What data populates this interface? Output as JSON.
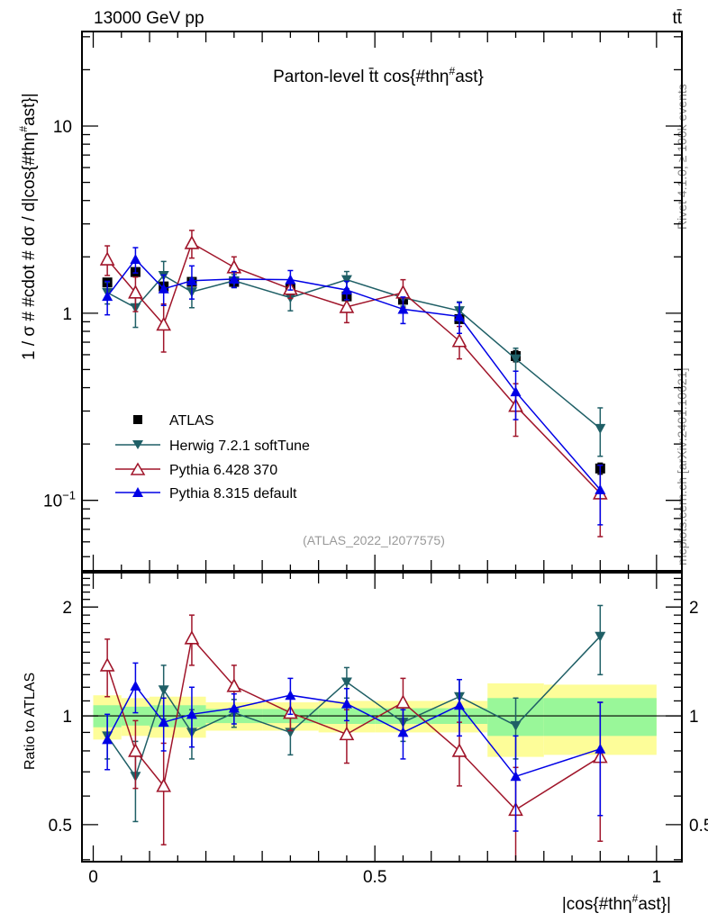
{
  "header": {
    "left_label": "13000 GeV pp",
    "right_label": "tt̄"
  },
  "side_labels": {
    "rivet": "Rivet 4.1.0, ≥ 100k events",
    "mcplots": "mcplots.cern.ch [arXiv:2401.10621]"
  },
  "colors": {
    "atlas": "#000000",
    "herwig": "#1f5f66",
    "pythia6": "#a0152a",
    "pythia8": "#0000e6",
    "band_inner": "#99f799",
    "band_outer": "#fdfd99"
  },
  "chart_data": [
    {
      "type": "line",
      "panel": "main",
      "title": "Parton-level t̄t cos{#thη#ast}",
      "title_parts": {
        "prefix": "Parton-level ",
        "tt": "t̄t",
        "suffix": " cos{#thη",
        "sup": "#",
        "end": "ast}"
      },
      "xlabel": "",
      "ylabel": "1 / σ # #cdot # dσ / d|cos{#thη#ast}|",
      "ylabel_parts": {
        "main": "1 / σ # #cdot # dσ / d|cos{#thη",
        "sup": "#",
        "end": "ast}|"
      },
      "yscale": "log",
      "xlim": [
        -0.02,
        1.045
      ],
      "ylim": [
        0.042,
        32
      ],
      "yticks": [
        {
          "v": 10,
          "label": "10"
        },
        {
          "v": 1,
          "label": "1"
        },
        {
          "v": 0.1,
          "label": "10",
          "exp": "−1"
        }
      ],
      "grid": false,
      "legend_position": "lower-left",
      "watermark": "(ATLAS_2022_I2077575)",
      "bin_edges": [
        0,
        0.05,
        0.1,
        0.15,
        0.2,
        0.3,
        0.4,
        0.5,
        0.6,
        0.7,
        0.8,
        1.0
      ],
      "x": [
        0.025,
        0.075,
        0.125,
        0.175,
        0.25,
        0.35,
        0.45,
        0.55,
        0.65,
        0.75,
        0.9
      ],
      "series": [
        {
          "name": "ATLAS",
          "key": "atlas",
          "marker": "square",
          "values": [
            1.46,
            1.66,
            1.39,
            1.47,
            1.47,
            1.35,
            1.23,
            1.18,
            0.93,
            0.59,
            0.148
          ],
          "err_lo": [
            0.05,
            0.06,
            0.05,
            0.05,
            0.04,
            0.04,
            0.04,
            0.04,
            0.04,
            0.04,
            0.01
          ],
          "err_hi": [
            0.05,
            0.06,
            0.05,
            0.05,
            0.04,
            0.04,
            0.04,
            0.04,
            0.04,
            0.04,
            0.01
          ]
        },
        {
          "name": "Herwig 7.2.1 softTune",
          "key": "herwig",
          "marker": "triangle-down",
          "values": [
            1.29,
            1.07,
            1.59,
            1.3,
            1.49,
            1.21,
            1.51,
            1.21,
            1.03,
            0.57,
            0.242
          ],
          "err_lo": [
            0.17,
            0.23,
            0.3,
            0.23,
            0.12,
            0.18,
            0.16,
            0.12,
            0.12,
            0.08,
            0.07
          ],
          "err_hi": [
            0.17,
            0.23,
            0.3,
            0.23,
            0.12,
            0.18,
            0.16,
            0.12,
            0.12,
            0.08,
            0.07
          ]
        },
        {
          "name": "Pythia 6.428 370",
          "key": "pythia6",
          "marker": "triangle-up-open",
          "values": [
            1.94,
            1.29,
            0.87,
            2.37,
            1.76,
            1.35,
            1.08,
            1.29,
            0.71,
            0.32,
            0.109
          ],
          "err_lo": [
            0.35,
            0.27,
            0.25,
            0.4,
            0.24,
            0.15,
            0.19,
            0.22,
            0.14,
            0.1,
            0.045
          ],
          "err_hi": [
            0.35,
            0.27,
            0.25,
            0.4,
            0.24,
            0.15,
            0.19,
            0.22,
            0.14,
            0.1,
            0.045
          ]
        },
        {
          "name": "Pythia 8.315 default",
          "key": "pythia8",
          "marker": "triangle-up",
          "values": [
            1.23,
            1.94,
            1.35,
            1.49,
            1.52,
            1.51,
            1.33,
            1.05,
            0.96,
            0.38,
            0.114
          ],
          "err_lo": [
            0.25,
            0.3,
            0.25,
            0.3,
            0.15,
            0.18,
            0.15,
            0.17,
            0.18,
            0.11,
            0.04
          ],
          "err_hi": [
            0.25,
            0.3,
            0.25,
            0.3,
            0.15,
            0.18,
            0.15,
            0.17,
            0.18,
            0.11,
            0.04
          ]
        }
      ]
    },
    {
      "type": "line",
      "panel": "ratio",
      "xlabel": "|cos{#thη#ast}|",
      "xlabel_parts": {
        "main": "|cos{#thη",
        "sup": "#",
        "end": "ast}|"
      },
      "ylabel": "Ratio to ATLAS",
      "yscale": "log",
      "xlim": [
        -0.02,
        1.045
      ],
      "ylim": [
        0.395,
        2.49
      ],
      "yticks": [
        {
          "v": 2,
          "label": "2"
        },
        {
          "v": 1,
          "label": "1"
        },
        {
          "v": 0.5,
          "label": "0.5"
        }
      ],
      "xticks": [
        {
          "v": 0,
          "label": "0"
        },
        {
          "v": 0.5,
          "label": "0.5"
        },
        {
          "v": 1,
          "label": "1"
        }
      ],
      "grid": false,
      "reference_line": 1,
      "band_inner": [
        0.07,
        0.06,
        0.07,
        0.07,
        0.045,
        0.045,
        0.05,
        0.05,
        0.05,
        0.12,
        0.12
      ],
      "band_outer": [
        0.14,
        0.12,
        0.13,
        0.13,
        0.09,
        0.09,
        0.1,
        0.1,
        0.1,
        0.23,
        0.22
      ],
      "series": [
        {
          "name": "Herwig 7.2.1 softTune",
          "key": "herwig",
          "marker": "triangle-down",
          "values": [
            0.88,
            0.68,
            1.18,
            0.9,
            1.02,
            0.9,
            1.24,
            0.96,
            1.13,
            0.94,
            1.66
          ],
          "err_lo": [
            0.12,
            0.17,
            0.2,
            0.14,
            0.09,
            0.12,
            0.12,
            0.11,
            0.13,
            0.18,
            0.36
          ],
          "err_hi": [
            0.12,
            0.17,
            0.2,
            0.14,
            0.09,
            0.12,
            0.12,
            0.11,
            0.13,
            0.18,
            0.36
          ]
        },
        {
          "name": "Pythia 6.428 370",
          "key": "pythia6",
          "marker": "triangle-up-open",
          "values": [
            1.38,
            0.8,
            0.64,
            1.64,
            1.21,
            1.02,
            0.89,
            1.09,
            0.8,
            0.55,
            0.77
          ],
          "err_lo": [
            0.25,
            0.17,
            0.2,
            0.26,
            0.17,
            0.11,
            0.15,
            0.18,
            0.16,
            0.17,
            0.32
          ],
          "err_hi": [
            0.25,
            0.17,
            0.2,
            0.26,
            0.17,
            0.11,
            0.15,
            0.18,
            0.16,
            0.17,
            0.32
          ]
        },
        {
          "name": "Pythia 8.315 default",
          "key": "pythia8",
          "marker": "triangle-up",
          "values": [
            0.86,
            1.21,
            0.96,
            1.01,
            1.05,
            1.14,
            1.08,
            0.9,
            1.07,
            0.68,
            0.81
          ],
          "err_lo": [
            0.15,
            0.19,
            0.16,
            0.19,
            0.1,
            0.13,
            0.11,
            0.14,
            0.19,
            0.2,
            0.28
          ],
          "err_hi": [
            0.15,
            0.19,
            0.16,
            0.19,
            0.1,
            0.13,
            0.11,
            0.14,
            0.19,
            0.2,
            0.28
          ]
        }
      ]
    }
  ]
}
